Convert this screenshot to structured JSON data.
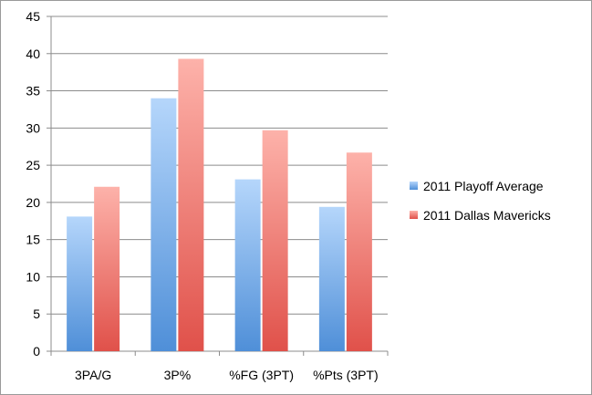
{
  "chart_data": {
    "type": "bar",
    "title": "",
    "xlabel": "",
    "ylabel": "",
    "categories": [
      "3PA/G",
      "3P%",
      "%FG (3PT)",
      "%Pts (3PT)"
    ],
    "series": [
      {
        "name": "2011 Playoff Average",
        "values": [
          18.1,
          34.0,
          23.1,
          19.4
        ],
        "color_top": "#b5d6fb",
        "color_bottom": "#4f8fd8"
      },
      {
        "name": "2011 Dallas Mavericks",
        "values": [
          22.1,
          39.3,
          29.7,
          26.7
        ],
        "color_top": "#fdb2aa",
        "color_bottom": "#e0514a"
      }
    ],
    "ylim": [
      0,
      45
    ],
    "yticks": [
      0,
      5,
      10,
      15,
      20,
      25,
      30,
      35,
      40,
      45
    ],
    "grid": true,
    "legend_position": "right"
  }
}
